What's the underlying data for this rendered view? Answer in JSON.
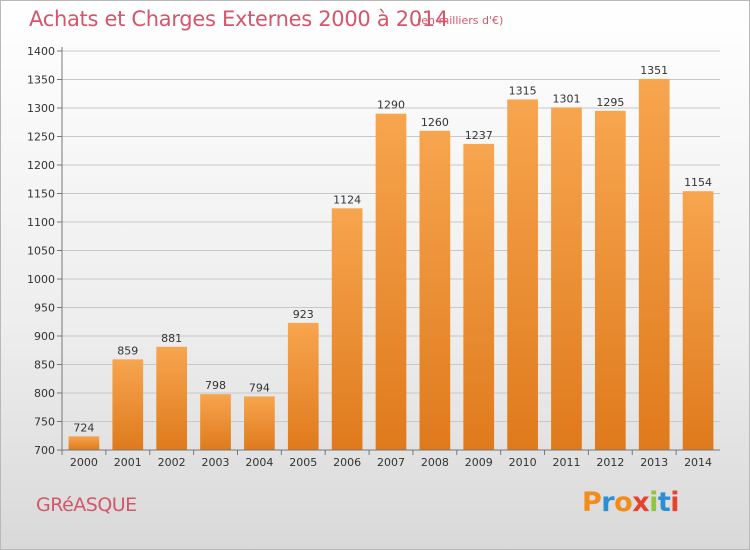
{
  "header": {
    "title": "Achats et Charges Externes 2000 à 2014",
    "unit": "(en milliers d'€)"
  },
  "footer": {
    "commune": "GRéASQUE",
    "logo_letters": [
      "P",
      "r",
      "o",
      "x",
      "i",
      "t",
      "i"
    ],
    "logo_colors": [
      "#f28c1a",
      "#2b8fd6",
      "#f28c1a",
      "#e8412e",
      "#8dc63f",
      "#2b8fd6",
      "#e8412e"
    ]
  },
  "chart_data": {
    "type": "bar",
    "title": "Achats et Charges Externes 2000 à 2014",
    "subtitle": "(en milliers d'€)",
    "categories": [
      "2000",
      "2001",
      "2002",
      "2003",
      "2004",
      "2005",
      "2006",
      "2007",
      "2008",
      "2009",
      "2010",
      "2011",
      "2012",
      "2013",
      "2014"
    ],
    "values": [
      724,
      859,
      881,
      798,
      794,
      923,
      1124,
      1290,
      1260,
      1237,
      1315,
      1301,
      1295,
      1351,
      1154
    ],
    "ylim": [
      700,
      1400
    ],
    "yticks": [
      700,
      750,
      800,
      850,
      900,
      950,
      1000,
      1050,
      1100,
      1150,
      1200,
      1250,
      1300,
      1350,
      1400
    ],
    "grid": true,
    "colors": {
      "bar_top": "#f7a54f",
      "bar_bottom": "#df7a1c",
      "grid": "#c8c8c8"
    }
  }
}
